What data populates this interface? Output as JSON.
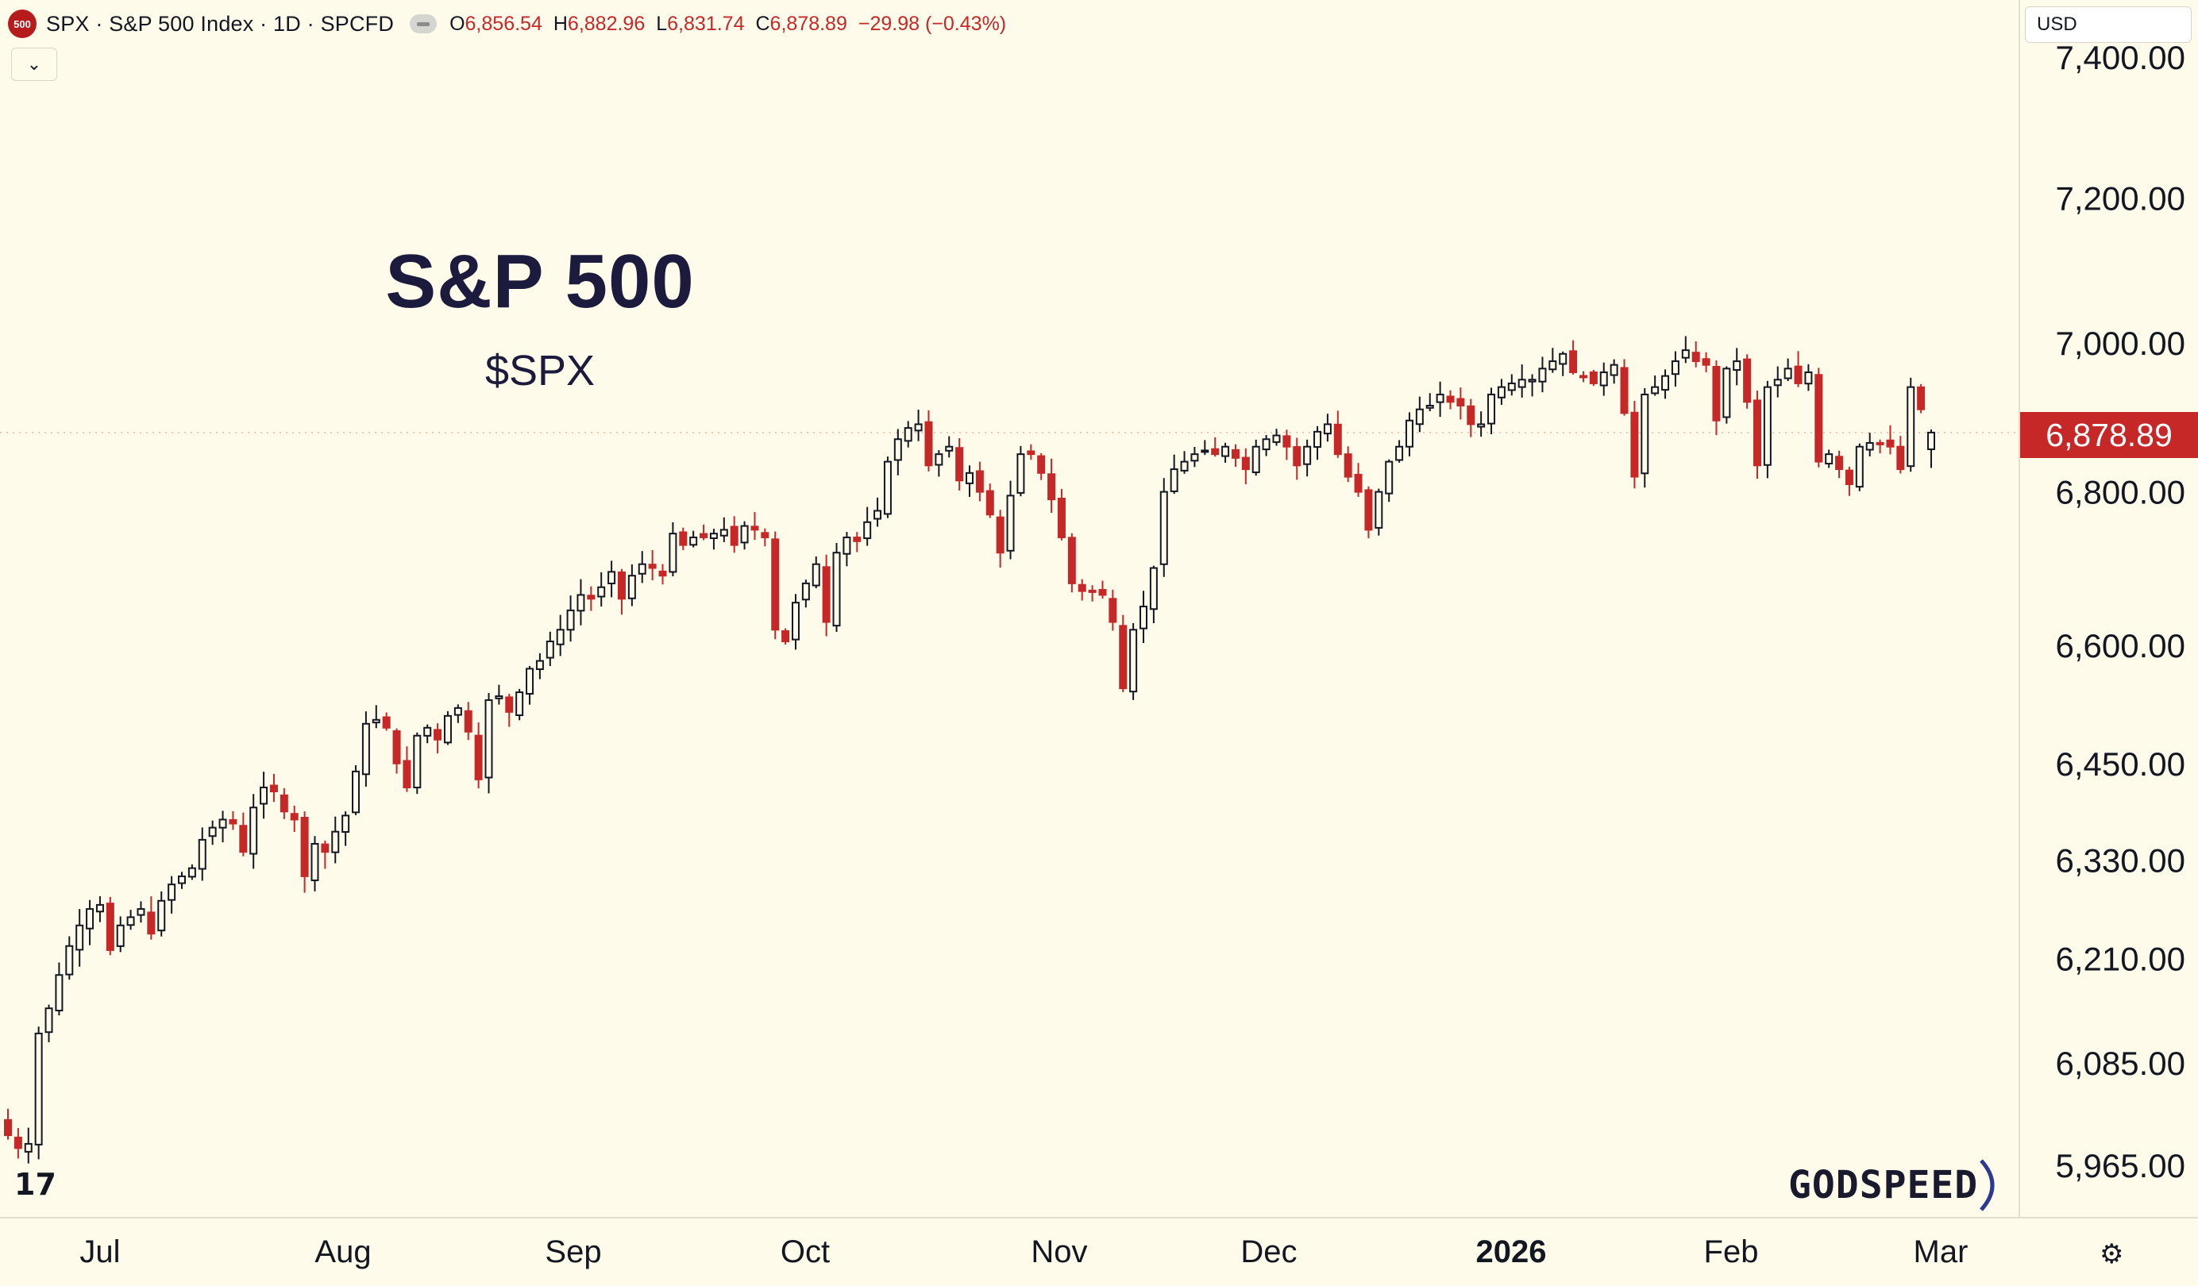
{
  "header": {
    "logo_label": "500",
    "symbol": "SPX · S&P 500 Index · 1D · SPCFD",
    "ohlc": [
      {
        "key": "O",
        "value": "6,856.54"
      },
      {
        "key": "H",
        "value": "6,882.96"
      },
      {
        "key": "L",
        "value": "6,831.74"
      },
      {
        "key": "C",
        "value": "6,878.89"
      }
    ],
    "change": "−29.98 (−0.43%)"
  },
  "currency": "USD",
  "overlay": {
    "title": "S&P 500",
    "subtitle": "$SPX"
  },
  "watermark": {
    "brand": "GODSPEED"
  },
  "colors": {
    "up": "#131722",
    "down": "#c62828",
    "background": "#fffbea",
    "price_tag": "#c62828"
  },
  "chart_data": {
    "type": "candlestick",
    "price_axis": {
      "ticks": [
        "7,400.00",
        "7,200.00",
        "7,000.00",
        "6,800.00",
        "6,600.00",
        "6,450.00",
        "6,330.00",
        "6,210.00",
        "6,085.00",
        "5,965.00"
      ],
      "current_price": "6,878.89",
      "scale": "log"
    },
    "time_axis": {
      "labels": [
        {
          "text": "Jul",
          "bold": false
        },
        {
          "text": "Aug",
          "bold": false
        },
        {
          "text": "Sep",
          "bold": false
        },
        {
          "text": "Oct",
          "bold": false
        },
        {
          "text": "Nov",
          "bold": false
        },
        {
          "text": "Dec",
          "bold": false
        },
        {
          "text": "2026",
          "bold": true
        },
        {
          "text": "Feb",
          "bold": false
        },
        {
          "text": "Mar",
          "bold": false
        }
      ]
    },
    "close_series": [
      6000,
      5985,
      5990,
      6120,
      6150,
      6190,
      6225,
      6250,
      6270,
      6275,
      6220,
      6250,
      6260,
      6270,
      6240,
      6280,
      6300,
      6310,
      6320,
      6355,
      6370,
      6380,
      6375,
      6340,
      6395,
      6420,
      6415,
      6390,
      6380,
      6310,
      6350,
      6340,
      6365,
      6385,
      6440,
      6500,
      6505,
      6495,
      6450,
      6420,
      6485,
      6495,
      6480,
      6510,
      6520,
      6490,
      6430,
      6530,
      6535,
      6515,
      6540,
      6570,
      6580,
      6605,
      6620,
      6645,
      6665,
      6660,
      6675,
      6695,
      6660,
      6690,
      6705,
      6700,
      6690,
      6745,
      6730,
      6740,
      6740,
      6745,
      6750,
      6730,
      6755,
      6750,
      6740,
      6620,
      6605,
      6655,
      6680,
      6705,
      6630,
      6720,
      6740,
      6735,
      6760,
      6775,
      6840,
      6870,
      6885,
      6890,
      6835,
      6850,
      6860,
      6815,
      6825,
      6800,
      6770,
      6720,
      6795,
      6850,
      6850,
      6825,
      6790,
      6740,
      6680,
      6670,
      6670,
      6665,
      6630,
      6545,
      6620,
      6650,
      6700,
      6800,
      6830,
      6840,
      6850,
      6855,
      6850,
      6860,
      6845,
      6830,
      6860,
      6870,
      6875,
      6860,
      6835,
      6860,
      6880,
      6890,
      6850,
      6820,
      6800,
      6750,
      6800,
      6840,
      6860,
      6895,
      6910,
      6915,
      6930,
      6920,
      6915,
      6890,
      6890,
      6930,
      6940,
      6945,
      6950,
      6950,
      6965,
      6975,
      6985,
      6960,
      6955,
      6945,
      6960,
      6970,
      6905,
      6820,
      6930,
      6940,
      6955,
      6975,
      6990,
      6975,
      6970,
      6895,
      6965,
      6975,
      6920,
      6835,
      6940,
      6950,
      6965,
      6945,
      6960,
      6840,
      6850,
      6830,
      6810,
      6860,
      6865,
      6865,
      6860,
      6830,
      6940,
      6910,
      6878.89
    ]
  }
}
